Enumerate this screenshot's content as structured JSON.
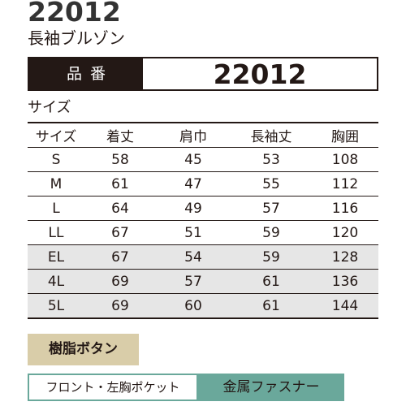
{
  "product_code_heading": "22012",
  "product_name": "長袖ブルゾン",
  "hinban": {
    "label": "品番",
    "value": "22012"
  },
  "size_caption": "サイズ",
  "size_table": {
    "headers": [
      "サイズ",
      "着丈",
      "肩巾",
      "長袖丈",
      "胸囲"
    ],
    "rows": [
      [
        "S",
        "58",
        "45",
        "53",
        "108"
      ],
      [
        "M",
        "61",
        "47",
        "55",
        "112"
      ],
      [
        "L",
        "64",
        "49",
        "57",
        "116"
      ],
      [
        "LL",
        "67",
        "51",
        "59",
        "120"
      ],
      [
        "EL",
        "67",
        "54",
        "59",
        "128"
      ],
      [
        "4L",
        "69",
        "57",
        "61",
        "136"
      ],
      [
        "5L",
        "69",
        "60",
        "61",
        "144"
      ]
    ]
  },
  "button_feature": "樹脂ボタン",
  "pocket_note": {
    "label": "フロント・左胸ポケット",
    "value": "金属ファスナー"
  },
  "colors": {
    "dark": "#231815",
    "shaded_row": "#e6e6e6",
    "button_badge": "#d9cda9",
    "fastener_accent": "#6aa89b"
  }
}
